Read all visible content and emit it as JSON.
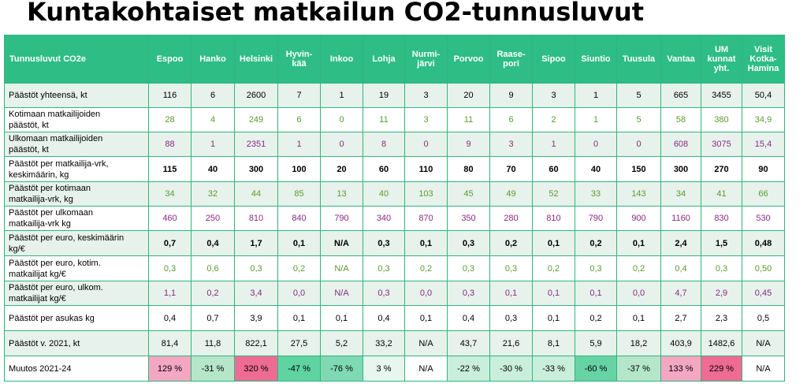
{
  "title": "Kuntakohtaiset matkailun CO2-tunnusluvut",
  "table": {
    "header_label": "Tunnusluvut  CO2e",
    "columns": [
      [
        "Espoo"
      ],
      [
        "Hanko"
      ],
      [
        "Helsinki"
      ],
      [
        "Hyvin-",
        "kää"
      ],
      [
        "Inkoo"
      ],
      [
        "Lohja"
      ],
      [
        "Nurmi-",
        "järvi"
      ],
      [
        "Porvoo"
      ],
      [
        "Raase-",
        "pori"
      ],
      [
        "Sipoo"
      ],
      [
        "Siuntio"
      ],
      [
        "Tuusula"
      ],
      [
        "Vantaa"
      ],
      [
        "UM",
        "kunnat",
        "yht."
      ],
      [
        "Visit",
        "Kotka-",
        "Hamina"
      ]
    ],
    "rows": [
      {
        "label": [
          "Päästöt yhteensä, kt"
        ],
        "color": "black",
        "bold": false,
        "values": [
          "116",
          "6",
          "2600",
          "7",
          "1",
          "19",
          "3",
          "20",
          "9",
          "3",
          "1",
          "5",
          "665",
          "3455",
          "50,4"
        ]
      },
      {
        "label": [
          "Kotimaan matkailijoiden",
          "päästöt, kt"
        ],
        "color": "green",
        "bold": false,
        "values": [
          "28",
          "4",
          "249",
          "6",
          "0",
          "11",
          "3",
          "11",
          "6",
          "2",
          "1",
          "5",
          "58",
          "380",
          "34,9"
        ]
      },
      {
        "label": [
          "Ulkomaan matkailijoiden",
          "päästöt, kt"
        ],
        "color": "purple",
        "bold": false,
        "values": [
          "88",
          "1",
          "2351",
          "1",
          "0",
          "8",
          "0",
          "9",
          "3",
          "1",
          "0",
          "0",
          "608",
          "3075",
          "15,4"
        ]
      },
      {
        "label": [
          "Päästöt per matkailija-vrk,",
          "keskimäärin, kg"
        ],
        "color": "black",
        "bold": true,
        "values": [
          "115",
          "40",
          "300",
          "100",
          "20",
          "60",
          "110",
          "80",
          "70",
          "60",
          "40",
          "150",
          "300",
          "270",
          "90"
        ]
      },
      {
        "label": [
          "Päästöt per kotimaan",
          "matkailija-vrk,  kg"
        ],
        "color": "green",
        "bold": false,
        "values": [
          "34",
          "32",
          "44",
          "85",
          "13",
          "40",
          "103",
          "45",
          "49",
          "52",
          "33",
          "143",
          "34",
          "41",
          "66"
        ]
      },
      {
        "label": [
          "Päästöt per ulkomaan",
          "matkailija-vrk  kg"
        ],
        "color": "purple",
        "bold": false,
        "values": [
          "460",
          "250",
          "810",
          "840",
          "790",
          "340",
          "870",
          "350",
          "280",
          "810",
          "790",
          "900",
          "1160",
          "830",
          "530"
        ]
      },
      {
        "label": [
          "Päästöt per euro, keskimäärin",
          "kg/€"
        ],
        "color": "black",
        "bold": true,
        "values": [
          "0,7",
          "0,4",
          "1,7",
          "0,1",
          "N/A",
          "0,3",
          "0,1",
          "0,3",
          "0,2",
          "0,1",
          "0,2",
          "0,1",
          "2,4",
          "1,5",
          "0,48"
        ]
      },
      {
        "label": [
          "Päästöt per euro, kotim.",
          "matkailijat   kg/€"
        ],
        "color": "green",
        "bold": false,
        "values": [
          "0,3",
          "0,6",
          "0,3",
          "0,2",
          "N/A",
          "0,3",
          "0,2",
          "0,3",
          "0,3",
          "0,2",
          "0,3",
          "0,2",
          "0,4",
          "0,3",
          "0,50"
        ]
      },
      {
        "label": [
          "Päästöt per euro, ulkom.",
          "matkailijat   kg/€"
        ],
        "color": "purple",
        "bold": false,
        "values": [
          "1,1",
          "0,2",
          "3,4",
          "0,0",
          "N/A",
          "0,3",
          "0,0",
          "0,3",
          "0,1",
          "0,1",
          "0,1",
          "0,0",
          "4,7",
          "2,9",
          "0,45"
        ]
      },
      {
        "label": [
          "Päästöt per asukas  kg"
        ],
        "color": "black",
        "bold": false,
        "values": [
          "0,4",
          "0,7",
          "3,9",
          "0,1",
          "0,1",
          "0,4",
          "0,1",
          "0,4",
          "0,3",
          "0,1",
          "0,2",
          "0,1",
          "2,7",
          "2,3",
          "0,5"
        ]
      },
      {
        "label": [
          "Päästöt v. 2021, kt"
        ],
        "color": "black",
        "bold": false,
        "values": [
          "81,4",
          "11,8",
          "822,1",
          "27,5",
          "5,2",
          "33,2",
          "N/A",
          "43,7",
          "21,6",
          "8,1",
          "5,9",
          "18,2",
          "403,9",
          "1482,6",
          "N/A"
        ]
      },
      {
        "label": [
          "Muutos  2021-24"
        ],
        "color": "black",
        "bold": false,
        "values": [
          "129 %",
          "-31 %",
          "320 %",
          "-47 %",
          "-76 %",
          "3 %",
          "N/A",
          "-22 %",
          "-30 %",
          "-33 %",
          "-60 %",
          "-37 %",
          "133 %",
          "229 %",
          "N/A"
        ],
        "cell_colors": [
          "#f4a7c3",
          "#b6e6c9",
          "#ee6b94",
          "#5fd3a1",
          "#7fdab3",
          "#e7f6ee",
          "#ffffff",
          "#c9eedb",
          "#c9eedb",
          "#c9eedb",
          "#67d3a4",
          "#b6e6c9",
          "#f4a7c3",
          "#ee6b94",
          "#ffffff"
        ]
      }
    ]
  },
  "colors": {
    "header_bg": "#2ebd85",
    "border": "#2eb67d",
    "shade_bg": "#e7f2ec",
    "green_text": "#5a9b2e",
    "purple_text": "#8b2a82"
  }
}
